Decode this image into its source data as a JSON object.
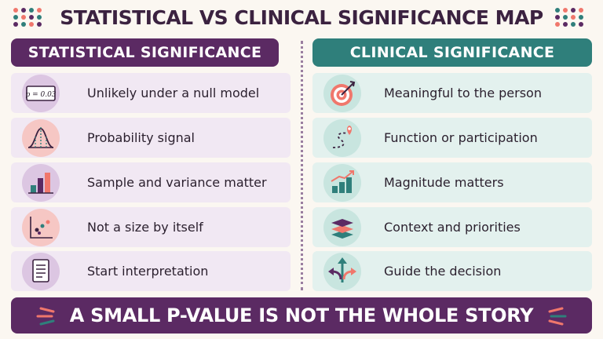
{
  "title": "STATISTICAL VS CLINICAL SIGNIFICANCE MAP",
  "colors": {
    "purple": "#5b2a63",
    "teal": "#2f7f7b",
    "coral": "#f0776c",
    "background": "#fbf7f1"
  },
  "statistical": {
    "header": "STATISTICAL SIGNIFICANCE",
    "items": [
      {
        "label": "Unlikely under a null model",
        "icon": "p-value-card-icon",
        "icon_text": "p = 0.03"
      },
      {
        "label": "Probability signal",
        "icon": "bell-curve-icon"
      },
      {
        "label": "Sample and variance matter",
        "icon": "bar-chart-icon"
      },
      {
        "label": "Not a size by itself",
        "icon": "scatter-plot-icon"
      },
      {
        "label": "Start interpretation",
        "icon": "document-icon"
      }
    ]
  },
  "clinical": {
    "header": "CLINICAL SIGNIFICANCE",
    "items": [
      {
        "label": "Meaningful to the person",
        "icon": "target-icon"
      },
      {
        "label": "Function or participation",
        "icon": "path-pin-icon"
      },
      {
        "label": "Magnitude matters",
        "icon": "rising-bars-icon"
      },
      {
        "label": "Context and priorities",
        "icon": "layers-icon"
      },
      {
        "label": "Guide the decision",
        "icon": "branching-arrows-icon"
      }
    ]
  },
  "footer": "A SMALL P-VALUE IS NOT THE WHOLE STORY"
}
